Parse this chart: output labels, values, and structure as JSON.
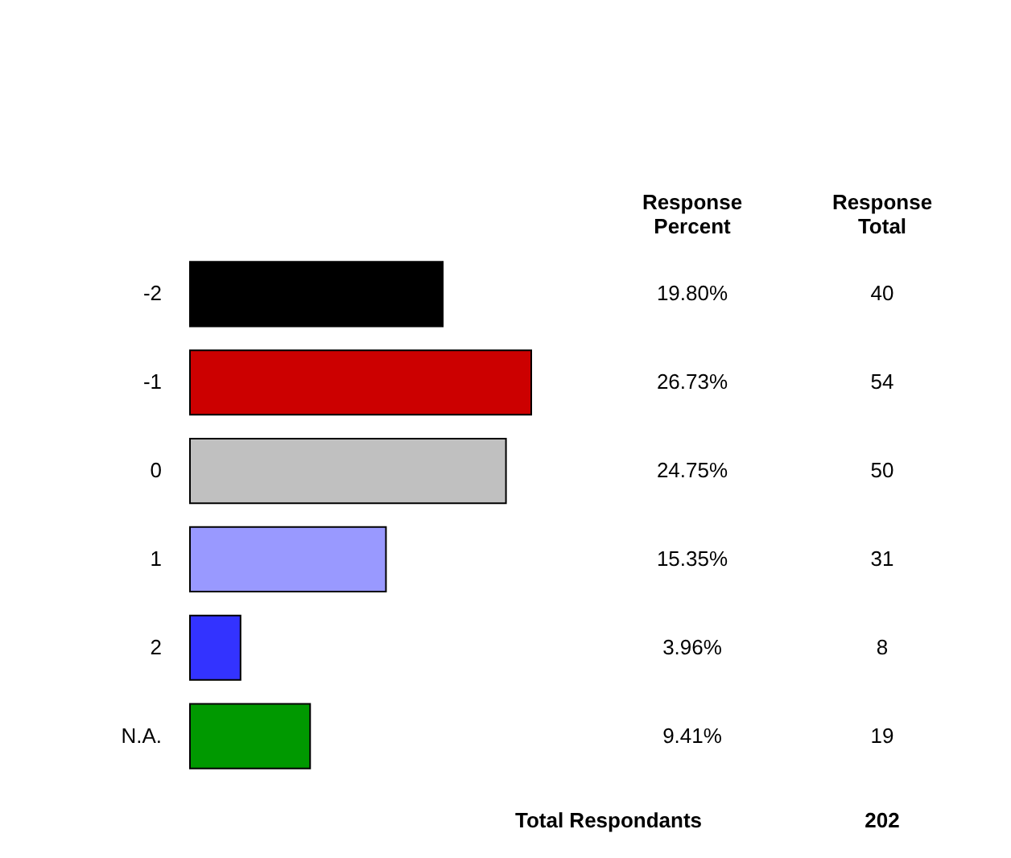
{
  "chart_data": {
    "type": "bar",
    "orientation": "horizontal",
    "categories": [
      "-2",
      "-1",
      "0",
      "1",
      "2",
      "N.A."
    ],
    "values": [
      19.8,
      26.73,
      24.75,
      15.35,
      3.96,
      9.41
    ],
    "colors": [
      "#000000",
      "#cc0000",
      "#c0c0c0",
      "#9999ff",
      "#3333ff",
      "#009900"
    ],
    "value_labels": [
      "19.80%",
      "26.73%",
      "24.75%",
      "15.35%",
      "3.96%",
      "9.41%"
    ],
    "annotations": [
      "Response Percent",
      "Response Total",
      "40",
      "54",
      "50",
      "31",
      "8",
      "19",
      "Total Respondants",
      "202"
    ]
  }
}
